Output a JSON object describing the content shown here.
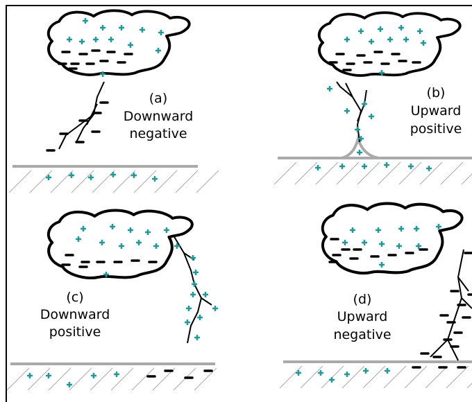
{
  "panels": [
    {
      "letter": "(a)",
      "lines": [
        "Downward",
        "negative"
      ]
    },
    {
      "letter": "(b)",
      "lines": [
        "Upward",
        "positive"
      ]
    },
    {
      "letter": "(c)",
      "lines": [
        "Downward",
        "positive"
      ]
    },
    {
      "letter": "(d)",
      "lines": [
        "Upward",
        "negative"
      ]
    }
  ]
}
